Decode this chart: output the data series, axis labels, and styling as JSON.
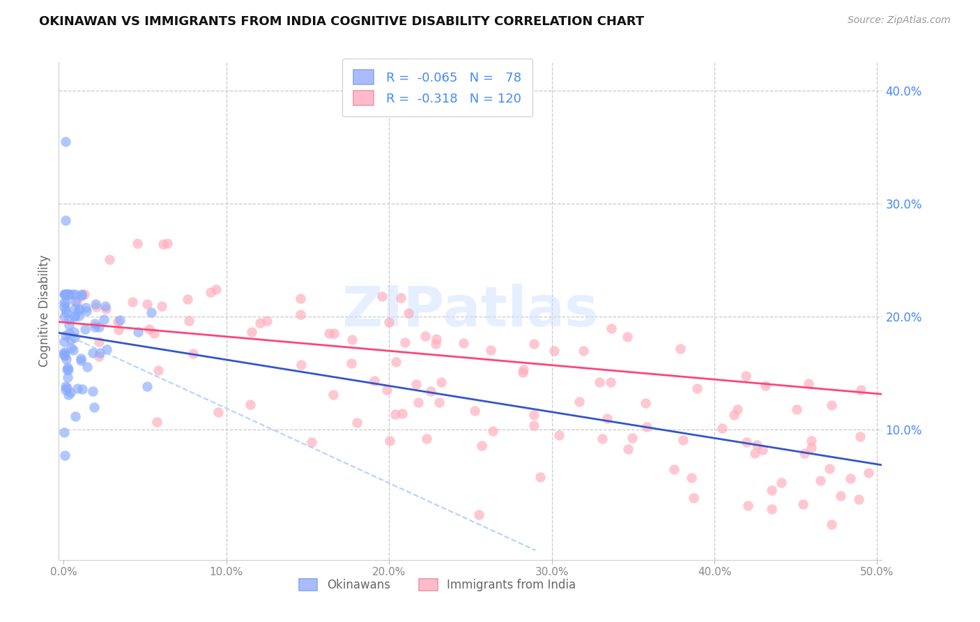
{
  "title": "OKINAWAN VS IMMIGRANTS FROM INDIA COGNITIVE DISABILITY CORRELATION CHART",
  "source": "Source: ZipAtlas.com",
  "ylabel": "Cognitive Disability",
  "xlim": [
    -0.003,
    0.503
  ],
  "ylim": [
    -0.015,
    0.425
  ],
  "xticks": [
    0.0,
    0.1,
    0.2,
    0.3,
    0.4,
    0.5
  ],
  "xticklabels": [
    "0.0%",
    "10.0%",
    "20.0%",
    "30.0%",
    "40.0%",
    "50.0%"
  ],
  "yticks_right": [
    0.1,
    0.2,
    0.3,
    0.4
  ],
  "yticklabels_right": [
    "10.0%",
    "20.0%",
    "30.0%",
    "40.0%"
  ],
  "grid_color": "#c8c8c8",
  "background_color": "#ffffff",
  "blue_color": "#88aaff",
  "pink_color": "#ffaabb",
  "R_blue": -0.065,
  "N_blue": 78,
  "R_pink": -0.318,
  "N_pink": 120,
  "watermark": "ZIPatlas",
  "text_blue": "#4488ff",
  "text_dark": "#333333",
  "legend_label_color": "#4488ff"
}
